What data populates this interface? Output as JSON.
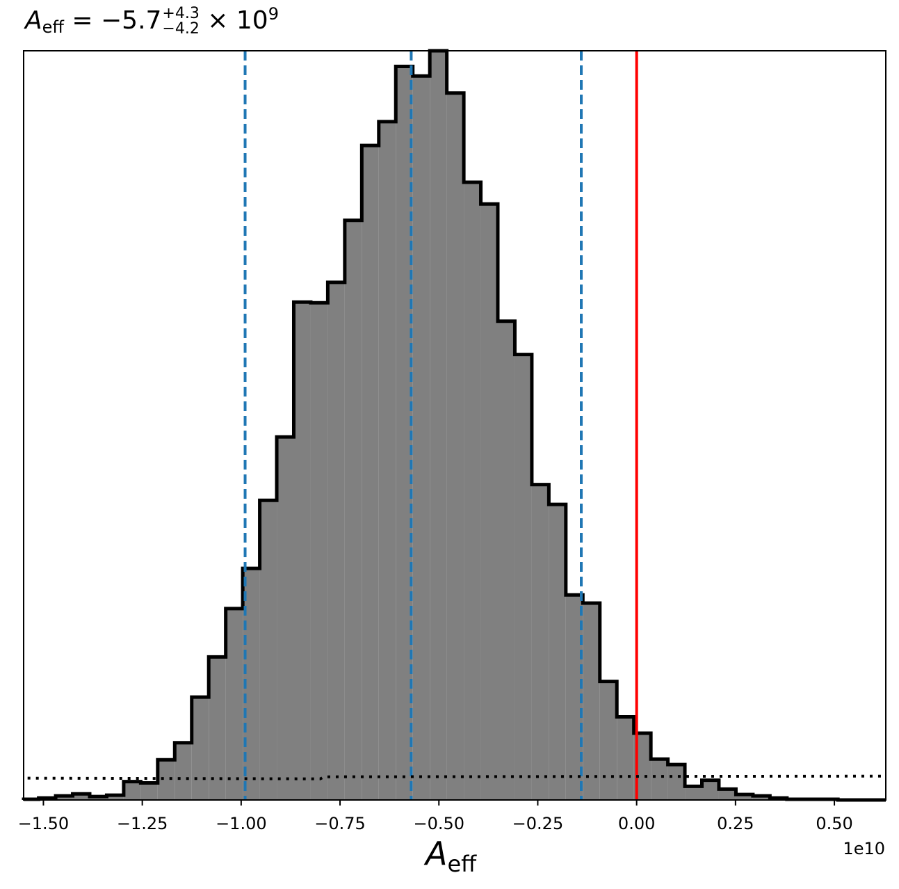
{
  "title": {
    "symbol": "A",
    "subscript": "eff",
    "equals": " = −5.7",
    "sup": "+4.3",
    "sub": "−4.2",
    "times": " × 10",
    "exponent": "9"
  },
  "chart_data": {
    "type": "histogram",
    "title": "A_eff = −5.7 (+4.3/−4.2) × 10^9",
    "xlabel": "A_eff",
    "xlabel_symbol": "A",
    "xlabel_subscript": "eff",
    "x_offset_label": "1e10",
    "xlim": [
      -1.55,
      0.63
    ],
    "ylim": [
      0,
      1100
    ],
    "xticks": [
      -1.5,
      -1.25,
      -1.0,
      -0.75,
      -0.5,
      -0.25,
      0.0,
      0.25,
      0.5
    ],
    "xtick_labels": [
      "−1.50",
      "−1.25",
      "−1.00",
      "−0.75",
      "−0.50",
      "−0.25",
      "0.00",
      "0.25",
      "0.50"
    ],
    "yticks_shown": false,
    "fill_color": "#808080",
    "edge_color": "#000000",
    "bins": [
      {
        "x0": -1.555,
        "x1": -1.512,
        "count": 1
      },
      {
        "x0": -1.512,
        "x1": -1.469,
        "count": 3
      },
      {
        "x0": -1.469,
        "x1": -1.426,
        "count": 6
      },
      {
        "x0": -1.426,
        "x1": -1.383,
        "count": 9
      },
      {
        "x0": -1.383,
        "x1": -1.34,
        "count": 5
      },
      {
        "x0": -1.34,
        "x1": -1.297,
        "count": 7
      },
      {
        "x0": -1.297,
        "x1": -1.254,
        "count": 27
      },
      {
        "x0": -1.254,
        "x1": -1.211,
        "count": 25
      },
      {
        "x0": -1.211,
        "x1": -1.168,
        "count": 59
      },
      {
        "x0": -1.168,
        "x1": -1.125,
        "count": 84
      },
      {
        "x0": -1.125,
        "x1": -1.082,
        "count": 151
      },
      {
        "x0": -1.082,
        "x1": -1.039,
        "count": 210
      },
      {
        "x0": -1.039,
        "x1": -0.996,
        "count": 281
      },
      {
        "x0": -0.996,
        "x1": -0.953,
        "count": 340
      },
      {
        "x0": -0.953,
        "x1": -0.91,
        "count": 440
      },
      {
        "x0": -0.91,
        "x1": -0.867,
        "count": 533
      },
      {
        "x0": -0.867,
        "x1": -0.824,
        "count": 731
      },
      {
        "x0": -0.824,
        "x1": -0.781,
        "count": 730
      },
      {
        "x0": -0.781,
        "x1": -0.738,
        "count": 760
      },
      {
        "x0": -0.738,
        "x1": -0.695,
        "count": 851
      },
      {
        "x0": -0.695,
        "x1": -0.652,
        "count": 961
      },
      {
        "x0": -0.652,
        "x1": -0.609,
        "count": 996
      },
      {
        "x0": -0.609,
        "x1": -0.566,
        "count": 1077
      },
      {
        "x0": -0.566,
        "x1": -0.523,
        "count": 1063
      },
      {
        "x0": -0.523,
        "x1": -0.48,
        "count": 1100
      },
      {
        "x0": -0.48,
        "x1": -0.437,
        "count": 1038
      },
      {
        "x0": -0.437,
        "x1": -0.394,
        "count": 907
      },
      {
        "x0": -0.394,
        "x1": -0.351,
        "count": 875
      },
      {
        "x0": -0.351,
        "x1": -0.308,
        "count": 703
      },
      {
        "x0": -0.308,
        "x1": -0.265,
        "count": 654
      },
      {
        "x0": -0.265,
        "x1": -0.222,
        "count": 463
      },
      {
        "x0": -0.222,
        "x1": -0.179,
        "count": 434
      },
      {
        "x0": -0.179,
        "x1": -0.136,
        "count": 301
      },
      {
        "x0": -0.136,
        "x1": -0.093,
        "count": 289
      },
      {
        "x0": -0.093,
        "x1": -0.05,
        "count": 174
      },
      {
        "x0": -0.05,
        "x1": -0.007,
        "count": 122
      },
      {
        "x0": -0.007,
        "x1": 0.036,
        "count": 98
      },
      {
        "x0": 0.036,
        "x1": 0.079,
        "count": 60
      },
      {
        "x0": 0.079,
        "x1": 0.122,
        "count": 52
      },
      {
        "x0": 0.122,
        "x1": 0.165,
        "count": 20
      },
      {
        "x0": 0.165,
        "x1": 0.208,
        "count": 29
      },
      {
        "x0": 0.208,
        "x1": 0.251,
        "count": 16
      },
      {
        "x0": 0.251,
        "x1": 0.294,
        "count": 8
      },
      {
        "x0": 0.294,
        "x1": 0.337,
        "count": 6
      },
      {
        "x0": 0.337,
        "x1": 0.38,
        "count": 3
      },
      {
        "x0": 0.38,
        "x1": 0.423,
        "count": 1
      },
      {
        "x0": 0.423,
        "x1": 0.466,
        "count": 1
      },
      {
        "x0": 0.466,
        "x1": 0.509,
        "count": 1
      },
      {
        "x0": 0.509,
        "x1": 0.552,
        "count": 0
      },
      {
        "x0": 0.552,
        "x1": 0.595,
        "count": 0
      },
      {
        "x0": 0.595,
        "x1": 0.638,
        "count": 0
      }
    ],
    "vlines": [
      {
        "name": "lower-quantile",
        "x": -0.99,
        "color": "#1f77b4",
        "style": "dashed"
      },
      {
        "name": "median",
        "x": -0.57,
        "color": "#1f77b4",
        "style": "dashed"
      },
      {
        "name": "upper-quantile",
        "x": -0.14,
        "color": "#1f77b4",
        "style": "dashed"
      },
      {
        "name": "zero-reference",
        "x": 0.0,
        "color": "#ff0000",
        "style": "solid"
      }
    ],
    "prior_line": {
      "style": "dotted",
      "color": "#000000",
      "points": [
        [
          -1.54,
          32
        ],
        [
          -0.8,
          31
        ],
        [
          -0.79,
          34
        ],
        [
          0.63,
          35
        ]
      ]
    }
  }
}
